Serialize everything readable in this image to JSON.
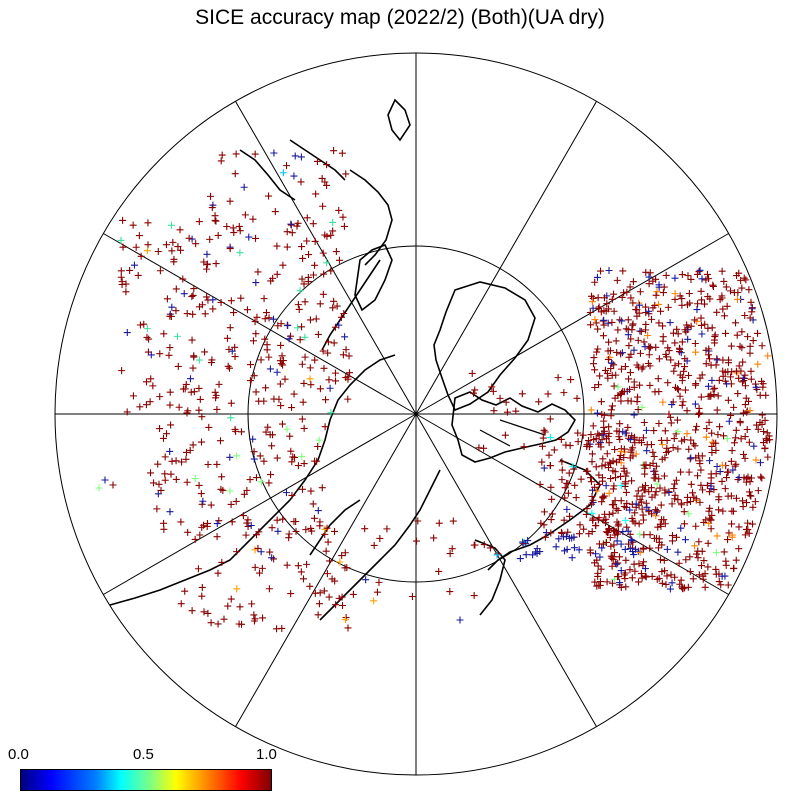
{
  "title": "SICE accuracy map (2022/2) (Both)(UA dry)",
  "colorbar": {
    "ticks": [
      "0.0",
      "0.5",
      "1.0"
    ],
    "colors": [
      "#000080",
      "#0000ff",
      "#0080ff",
      "#00ffff",
      "#80ff80",
      "#ffff00",
      "#ff8000",
      "#ff0000",
      "#800000"
    ]
  },
  "map": {
    "projection": "north polar stereographic",
    "meridian_spacing_deg": 30,
    "inner_circle": "visible",
    "marker_symbol": "+",
    "dominant_marker_color": "#8b0000"
  }
}
